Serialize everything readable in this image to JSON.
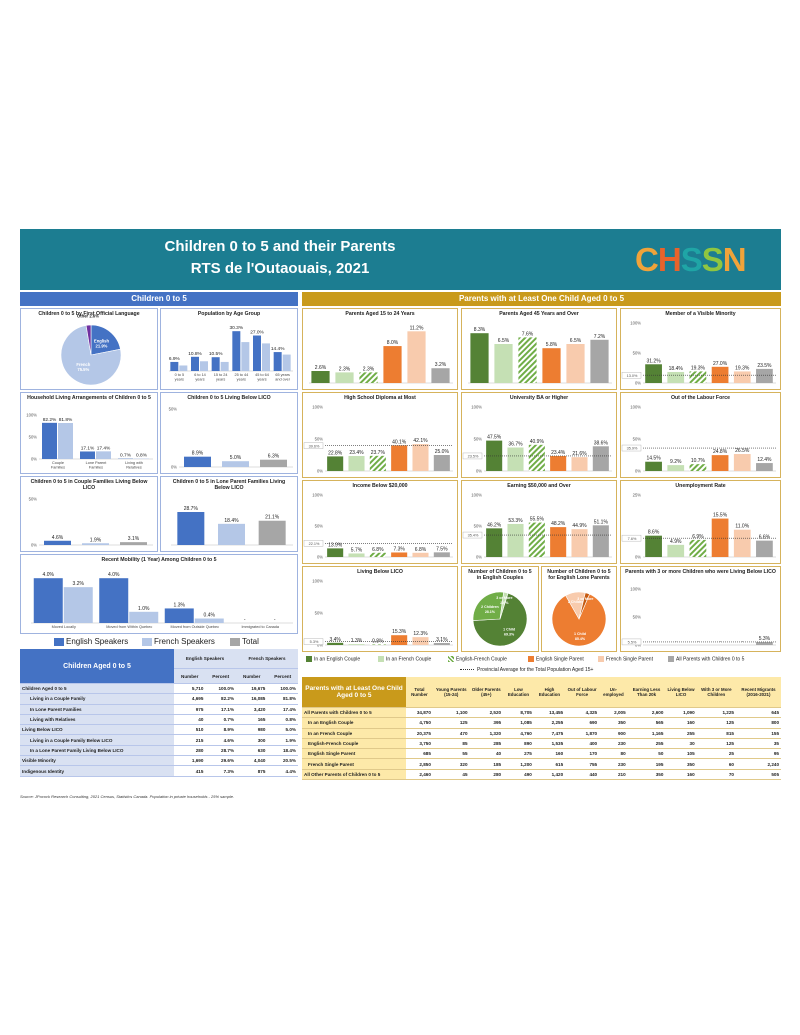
{
  "header": {
    "title": "Children 0 to 5 and their Parents",
    "subtitle": "RTS de l'Outaouais, 2021",
    "logo": "CHSSN"
  },
  "colors": {
    "banner": "#1c7d91",
    "left_header": "#4472c4",
    "right_header": "#c99a1b",
    "english": "#4472c4",
    "french": "#b4c7e7",
    "total": "#a6a6a6",
    "eng_couple": "#548235",
    "fr_couple": "#c5e0b4",
    "ef_couple": "#70ad47",
    "eng_single": "#ed7d31",
    "fr_single": "#f8cbad",
    "all_parents": "#a6a6a6"
  },
  "left_section": {
    "title": "Children 0 to 5"
  },
  "right_section": {
    "title": "Parents with at Least One Child Aged 0 to 5"
  },
  "legend_left": [
    "English Speakers",
    "French Speakers",
    "Total"
  ],
  "legend_right": [
    "In an English Couple",
    "In an French Couple",
    "English-French Couple",
    "English Single Parent",
    "French Single Parent",
    "All Parents with Children 0 to 5"
  ],
  "provincial_note": "Provincial Average for the Total Population Aged 15+",
  "chart_data": [
    {
      "id": "flol",
      "type": "pie",
      "title": "Children 0 to 5 by First Official Language",
      "labels": [
        "English",
        "French",
        "Other"
      ],
      "values": [
        21.9,
        75.5,
        2.6
      ],
      "display": [
        "English\n21.9%",
        "French\n75.5%",
        "Other 2.6%"
      ]
    },
    {
      "id": "agegroup",
      "type": "bar",
      "title": "Population by Age Group",
      "categories": [
        "0 to 5 years",
        "6 to 14 years",
        "15 to 24 years",
        "25 to 44 years",
        "45 to 64 years",
        "65 years and over"
      ],
      "series": [
        {
          "name": "English Speakers",
          "values": [
            6.9,
            10.8,
            10.5,
            30.3,
            27.0,
            14.4
          ]
        },
        {
          "name": "French Speakers",
          "values": [
            4.2,
            7.4,
            6.9,
            22.0,
            21.0,
            12.5
          ]
        }
      ],
      "labels": [
        "6.9%",
        "10.8%",
        "10.5%",
        "30.3%",
        "27.0%",
        "14.4%"
      ],
      "ylim": [
        0,
        35
      ]
    },
    {
      "id": "living",
      "type": "bar",
      "title": "Household Living Arrangements of Children 0 to 5",
      "categories": [
        "Couple Families",
        "Lone Parent Families",
        "Living with Relatives"
      ],
      "series": [
        {
          "name": "English Speakers",
          "values": [
            82.2,
            17.1,
            0.7
          ]
        },
        {
          "name": "French Speakers",
          "values": [
            81.8,
            17.4,
            0.8
          ]
        }
      ],
      "labels": [
        [
          "82.2%",
          "17.1%",
          "0.7%"
        ],
        [
          "81.8%",
          "17.4%",
          "0.8%"
        ]
      ],
      "ylim": [
        0,
        100
      ],
      "yticks": [
        "0%",
        "50%",
        "100%"
      ]
    },
    {
      "id": "lico",
      "type": "bar",
      "title": "Children 0 to 5 Living Below LICO",
      "categories": [
        "English",
        "French",
        "Total"
      ],
      "values": [
        8.9,
        5.0,
        6.3
      ],
      "labels": [
        "8.9%",
        "5.0%",
        "6.3%"
      ],
      "ylim": [
        0,
        50
      ],
      "yticks": [
        "0%",
        "50%"
      ]
    },
    {
      "id": "couplelico",
      "type": "bar",
      "title": "Children 0 to 5 in Couple Families Living Below LICO",
      "categories": [
        "English",
        "French",
        "Total"
      ],
      "values": [
        4.6,
        1.9,
        3.1
      ],
      "labels": [
        "4.6%",
        "1.9%",
        "3.1%"
      ],
      "ylim": [
        0,
        50
      ],
      "yticks": [
        "0%",
        "50%"
      ]
    },
    {
      "id": "lonelico",
      "type": "bar",
      "title": "Children 0 to 5 in Lone Parent Families Living Below LICO",
      "categories": [
        "English",
        "French",
        "Total"
      ],
      "values": [
        28.7,
        18.4,
        21.1
      ],
      "labels": [
        "28.7%",
        "18.4%",
        "21.1%"
      ],
      "ylim": [
        0,
        40
      ]
    },
    {
      "id": "mobility",
      "type": "bar",
      "title": "Recent Mobility (1 Year) Among Children 0 to 5",
      "categories": [
        "Moved Locally",
        "Moved from Within Quebec",
        "Moved from Outside Quebec",
        "Immigrated to Canada"
      ],
      "series": [
        {
          "name": "English Speakers",
          "values": [
            4.0,
            4.0,
            1.3,
            0
          ]
        },
        {
          "name": "French Speakers",
          "values": [
            3.2,
            1.0,
            0.4,
            0
          ]
        }
      ],
      "labels": [
        [
          "4.0%",
          "4.0%",
          "1.3%",
          "-"
        ],
        [
          "3.2%",
          "1.0%",
          "0.4%",
          "-"
        ]
      ],
      "ylim": [
        0,
        5
      ]
    },
    {
      "id": "p15_24",
      "type": "bar",
      "title": "Parents Aged 15 to 24 Years",
      "categories": [
        "In an English Couple",
        "In an French Couple",
        "English-French Couple",
        "English Single Parent",
        "French Single Parent",
        "All Parents with Children 0 to 5"
      ],
      "values": [
        2.6,
        2.3,
        2.3,
        8.0,
        11.2,
        3.2
      ],
      "labels": [
        "2.6%",
        "2.3%",
        "2.3%",
        "8.0%",
        "11.2%",
        "3.2%"
      ],
      "ylim": [
        0,
        13
      ]
    },
    {
      "id": "p45",
      "type": "bar",
      "title": "Parents Aged 45 Years and Over",
      "categories": [
        "In an English Couple",
        "In an French Couple",
        "English-French Couple",
        "English Single Parent",
        "French Single Parent",
        "All Parents with Children 0 to 5"
      ],
      "values": [
        8.3,
        6.5,
        7.6,
        5.8,
        6.5,
        7.2
      ],
      "labels": [
        "8.3%",
        "6.5%",
        "7.6%",
        "5.8%",
        "6.5%",
        "7.2%"
      ],
      "ylim": [
        0,
        10
      ]
    },
    {
      "id": "vismin",
      "type": "bar",
      "title": "Member of a Visible Minority",
      "categories": [
        "In an English Couple",
        "In an French Couple",
        "English-French Couple",
        "English Single Parent",
        "French Single Parent",
        "All Parents with Children 0 to 5"
      ],
      "values": [
        31.2,
        18.4,
        19.3,
        27.0,
        19.3,
        23.5
      ],
      "labels": [
        "31.2%",
        "18.4%",
        "19.3%",
        "27.0%",
        "19.3%",
        "23.5%"
      ],
      "ylim": [
        0,
        100
      ],
      "yticks": [
        "0%",
        "50%",
        "100%"
      ],
      "provincial": 13.0,
      "provincial_label": "13.0%"
    },
    {
      "id": "hsd",
      "type": "bar",
      "title": "High School Diploma at Most",
      "categories": [
        "In an English Couple",
        "In an French Couple",
        "English-French Couple",
        "English Single Parent",
        "French Single Parent",
        "All Parents with Children 0 to 5"
      ],
      "values": [
        22.8,
        23.4,
        23.7,
        40.1,
        42.1,
        25.0
      ],
      "labels": [
        "22.8%",
        "23.4%",
        "23.7%",
        "40.1%",
        "42.1%",
        "25.0%"
      ],
      "ylim": [
        0,
        100
      ],
      "yticks": [
        "0%",
        "50%",
        "100%"
      ],
      "provincial": 39.6,
      "provincial_label": "39.6%"
    },
    {
      "id": "ba",
      "type": "bar",
      "title": "University BA or Higher",
      "categories": [
        "In an English Couple",
        "In an French Couple",
        "English-French Couple",
        "English Single Parent",
        "French Single Parent",
        "All Parents with Children 0 to 5"
      ],
      "values": [
        47.5,
        36.7,
        40.9,
        23.4,
        21.6,
        38.6
      ],
      "labels": [
        "47.5%",
        "36.7%",
        "40.9%",
        "23.4%",
        "21.6%",
        "38.6%"
      ],
      "ylim": [
        0,
        100
      ],
      "yticks": [
        "0%",
        "50%",
        "100%"
      ],
      "provincial": 23.5,
      "provincial_label": "23.5%"
    },
    {
      "id": "olf",
      "type": "bar",
      "title": "Out of the Labour Force",
      "categories": [
        "In an English Couple",
        "In an French Couple",
        "English-French Couple",
        "English Single Parent",
        "French Single Parent",
        "All Parents with Children 0 to 5"
      ],
      "values": [
        14.5,
        9.2,
        10.7,
        24.8,
        26.5,
        12.4
      ],
      "labels": [
        "14.5%",
        "9.2%",
        "10.7%",
        "24.8%",
        "26.5%",
        "12.4%"
      ],
      "ylim": [
        0,
        100
      ],
      "yticks": [
        "0%",
        "50%",
        "100%"
      ],
      "provincial": 35.9,
      "provincial_label": "35.9%"
    },
    {
      "id": "inc20",
      "type": "bar",
      "title": "Income Below $20,000",
      "categories": [
        "In an English Couple",
        "In an French Couple",
        "English-French Couple",
        "English Single Parent",
        "French Single Parent",
        "All Parents with Children 0 to 5"
      ],
      "values": [
        13.9,
        5.7,
        6.8,
        7.3,
        6.8,
        7.5
      ],
      "labels": [
        "13.9%",
        "5.7%",
        "6.8%",
        "7.3%",
        "6.8%",
        "7.5%"
      ],
      "ylim": [
        0,
        100
      ],
      "yticks": [
        "0%",
        "50%",
        "100%"
      ],
      "provincial": 22.1,
      "provincial_label": "22.1%"
    },
    {
      "id": "earn50",
      "type": "bar",
      "title": "Earning $50,000 and Over",
      "categories": [
        "In an English Couple",
        "In an French Couple",
        "English-French Couple",
        "English Single Parent",
        "French Single Parent",
        "All Parents with Children 0 to 5"
      ],
      "values": [
        46.2,
        53.3,
        55.5,
        48.2,
        44.9,
        51.1
      ],
      "labels": [
        "46.2%",
        "53.3%",
        "55.5%",
        "48.2%",
        "44.9%",
        "51.1%"
      ],
      "ylim": [
        0,
        100
      ],
      "yticks": [
        "0%",
        "50%",
        "100%"
      ],
      "provincial": 35.4,
      "provincial_label": "35.4%"
    },
    {
      "id": "unemp",
      "type": "bar",
      "title": "Unemployment Rate",
      "categories": [
        "In an English Couple",
        "In an French Couple",
        "English-French Couple",
        "English Single Parent",
        "French Single Parent",
        "All Parents with Children 0 to 5"
      ],
      "values": [
        8.6,
        4.9,
        6.9,
        15.5,
        11.0,
        6.6
      ],
      "labels": [
        "8.6%",
        "4.9%",
        "6.9%",
        "15.5%",
        "11.0%",
        "6.6%"
      ],
      "ylim": [
        0,
        25
      ],
      "yticks": [
        "0%",
        "25%"
      ],
      "provincial": 7.6,
      "provincial_label": "7.6%"
    },
    {
      "id": "belowlico",
      "type": "bar",
      "title": "Living Below LICO",
      "categories": [
        "In an English Couple",
        "In an French Couple",
        "English-French Couple",
        "English Single Parent",
        "French Single Parent",
        "All Parents with Children 0 to 5"
      ],
      "values": [
        3.4,
        1.3,
        0.8,
        15.3,
        12.3,
        3.1
      ],
      "labels": [
        "3.4%",
        "1.3%",
        "0.8%",
        "15.3%",
        "12.3%",
        "3.1%"
      ],
      "ylim": [
        0,
        100
      ],
      "yticks": [
        "0%",
        "50%",
        "100%"
      ],
      "provincial": 5.3,
      "provincial_label": "5.3%"
    },
    {
      "id": "kidsEC",
      "type": "pie",
      "title": "Number of Children 0 to 5 in English Couples",
      "labels": [
        "1 Child",
        "2 Children",
        "3 or More"
      ],
      "values": [
        69.3,
        28.1,
        2.6
      ],
      "display": [
        "1 Child\n69.3%",
        "2 Children\n28.1%",
        "3 or More\n2.6%"
      ]
    },
    {
      "id": "kidsESP",
      "type": "pie",
      "title": "Number of Children 0 to 5 for English Lone Parents",
      "labels": [
        "1 Child",
        "2 Children",
        "3 or More"
      ],
      "values": [
        85.4,
        12.0,
        2.6
      ],
      "display": [
        "1 Child\n85.4%",
        "2 Children",
        "3 or More"
      ]
    },
    {
      "id": "three",
      "type": "bar",
      "title": "Parents with 3 or more Children who were Living Below LICO",
      "categories": [
        "In an English Couple",
        "In an French Couple",
        "English-French Couple",
        "English Single Parent",
        "French Single Parent",
        "All Parents with Children 0 to 5"
      ],
      "values": [
        0,
        0,
        0,
        0,
        0,
        5.3
      ],
      "labels": [
        "-",
        "-",
        "-",
        "-",
        "-",
        "5.3%"
      ],
      "ylim": [
        0,
        100
      ],
      "yticks": [
        "0%",
        "50%",
        "100%"
      ],
      "provincial": 5.5,
      "provincial_label": "5.5%"
    }
  ],
  "left_table": {
    "corner": "Children Aged 0 to 5",
    "group_headers": [
      "English Speakers",
      "French Speakers"
    ],
    "sub_headers": [
      "Number",
      "Percent",
      "Number",
      "Percent"
    ],
    "rows": [
      [
        "Children Aged 0 to 5",
        "5,710",
        "100.0%",
        "19,675",
        "100.0%"
      ],
      [
        "Living in a Couple Family",
        "4,695",
        "82.2%",
        "16,085",
        "81.8%"
      ],
      [
        "In Lone Parent Families",
        "975",
        "17.1%",
        "3,420",
        "17.4%"
      ],
      [
        "Living with Relatives",
        "40",
        "0.7%",
        "165",
        "0.8%"
      ],
      [
        "Living Below LICO",
        "510",
        "8.9%",
        "980",
        "5.0%"
      ],
      [
        "Living in a Couple Family Below LICO",
        "215",
        "4.6%",
        "300",
        "1.9%"
      ],
      [
        "In a Lone Parent Family Living Below LICO",
        "280",
        "28.7%",
        "630",
        "18.4%"
      ],
      [
        "Visible Minority",
        "1,690",
        "29.6%",
        "4,040",
        "20.5%"
      ],
      [
        "Indigenous Identity",
        "415",
        "7.3%",
        "875",
        "4.4%"
      ]
    ]
  },
  "right_table": {
    "corner": "Parents with at Least One Child Aged 0 to 5",
    "headers": [
      "Total Number",
      "Young Parents (15-24)",
      "Older Parents (45+)",
      "Low Education",
      "High Education",
      "Out of Labour Force",
      "Un-employed",
      "Earning Less Than 20k",
      "Living Below LICO",
      "With 3 or More Children",
      "Recent Migrants (2016-2021)"
    ],
    "rows": [
      [
        "All Parents with Children 0 to 5",
        "34,870",
        "1,100",
        "2,520",
        "8,705",
        "13,455",
        "4,325",
        "2,005",
        "2,600",
        "1,090",
        "1,225",
        "645"
      ],
      [
        "In an English Couple",
        "4,750",
        "125",
        "395",
        "1,085",
        "2,255",
        "690",
        "350",
        "565",
        "160",
        "125",
        "800"
      ],
      [
        "In an French Couple",
        "20,375",
        "470",
        "1,320",
        "4,760",
        "7,475",
        "1,870",
        "900",
        "1,165",
        "255",
        "815",
        "155"
      ],
      [
        "English-French Couple",
        "3,750",
        "85",
        "285",
        "890",
        "1,535",
        "400",
        "230",
        "255",
        "30",
        "125",
        "35"
      ],
      [
        "English Single Parent",
        "685",
        "55",
        "40",
        "275",
        "160",
        "170",
        "80",
        "50",
        "105",
        "25",
        "95"
      ],
      [
        "French Single Parent",
        "2,850",
        "320",
        "185",
        "1,200",
        "615",
        "755",
        "230",
        "195",
        "350",
        "60",
        "2,240"
      ],
      [
        "All Other Parents of Children 0 to 5",
        "2,460",
        "45",
        "280",
        "490",
        "1,420",
        "440",
        "210",
        "350",
        "160",
        "70",
        "505"
      ]
    ]
  },
  "source": "Source: JPocock Research Consulting, 2021 Census, Statistics Canada. Population in private households - 25% sample."
}
